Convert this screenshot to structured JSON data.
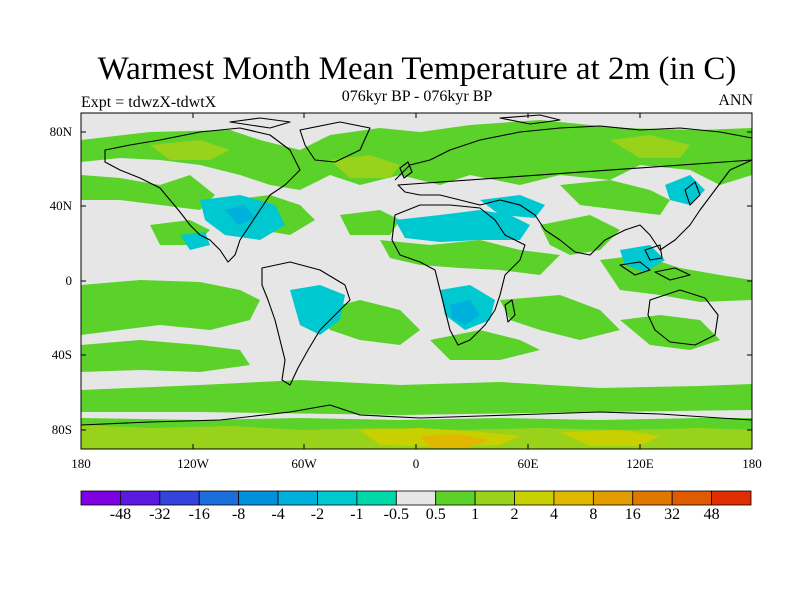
{
  "title": "Warmest Month Mean Temperature at 2m (in C)",
  "subtitle": "076kyr BP - 076kyr BP",
  "left_label": "Expt = tdwzX-tdwtX",
  "right_label": "ANN",
  "y_ticks": [
    "80N",
    "40N",
    "0",
    "40S",
    "80S"
  ],
  "x_ticks": [
    "180",
    "120W",
    "60W",
    "0",
    "60E",
    "120E",
    "180"
  ],
  "colorbar": {
    "colors": [
      "#7f00e0",
      "#5a1ae0",
      "#3344dd",
      "#1a6fdc",
      "#0090dc",
      "#00b0dc",
      "#00c8d0",
      "#00d8aa",
      "#e6e6e6",
      "#5ad22a",
      "#98d21a",
      "#c8d000",
      "#e0b800",
      "#e09c00",
      "#e07800",
      "#e05a00",
      "#e02e00"
    ],
    "labels": [
      "-48",
      "-32",
      "-16",
      "-8",
      "-4",
      "-2",
      "-1",
      "-0.5",
      "0.5",
      "1",
      "2",
      "4",
      "8",
      "16",
      "32",
      "48"
    ]
  },
  "legend_colors": {
    "neutral": "#e6e6e6",
    "pos_1": "#5ad22a",
    "pos_2": "#98d21a",
    "pos_4": "#c8d000",
    "pos_8": "#e0b800",
    "neg_1": "#00c8d0",
    "neg_2": "#00b0dc"
  }
}
